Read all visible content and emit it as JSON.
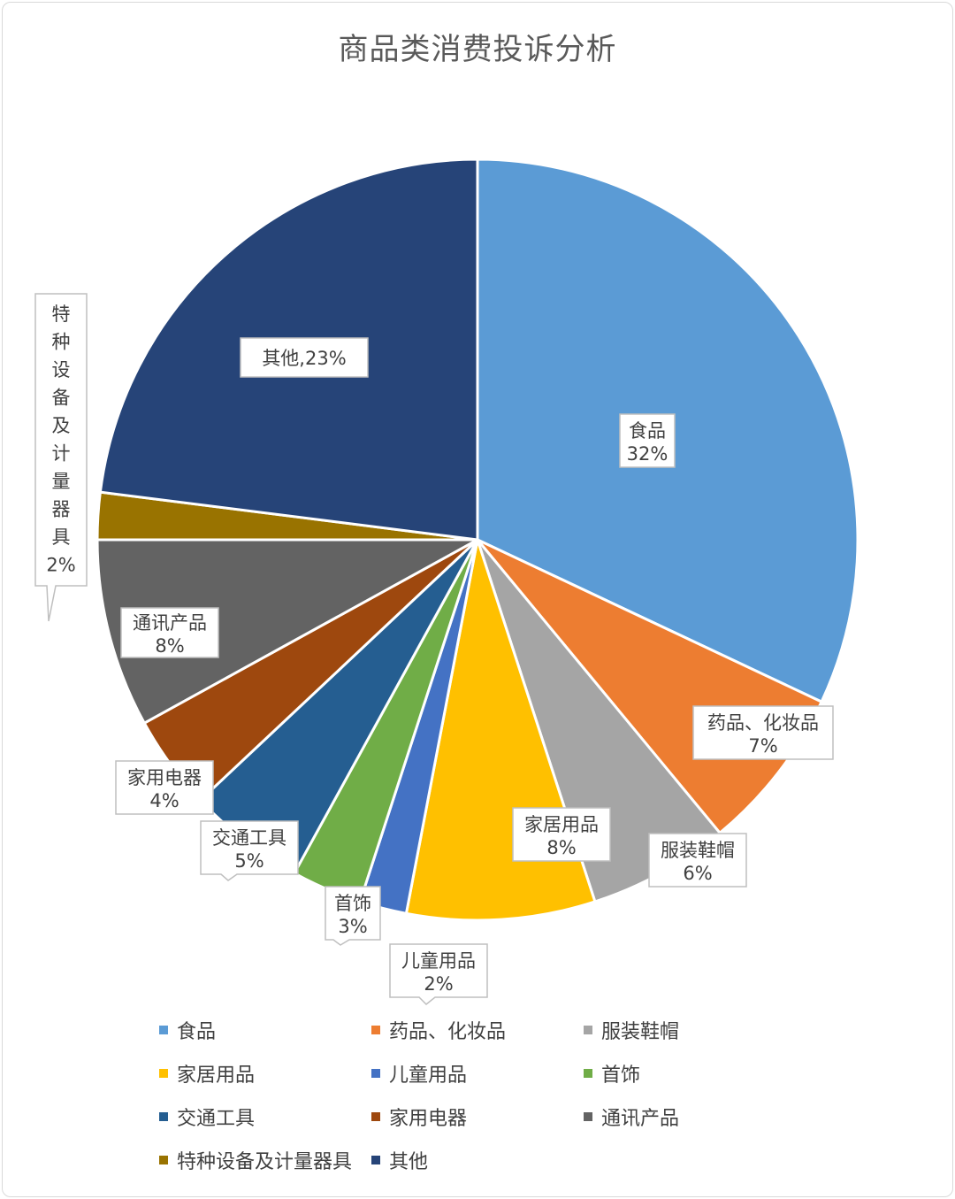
{
  "chart_data": {
    "type": "pie",
    "title": "商品类消费投诉分析",
    "slices": [
      {
        "name": "食品",
        "value": 32,
        "label": "32%",
        "color": "#5b9bd5"
      },
      {
        "name": "药品、化妆品",
        "value": 7,
        "label": "7%",
        "color": "#ed7d31"
      },
      {
        "name": "服装鞋帽",
        "value": 6,
        "label": "6%",
        "color": "#a5a5a5"
      },
      {
        "name": "家居用品",
        "value": 8,
        "label": "8%",
        "color": "#ffc000"
      },
      {
        "name": "儿童用品",
        "value": 2,
        "label": "2%",
        "color": "#4472c4"
      },
      {
        "name": "首饰",
        "value": 3,
        "label": "3%",
        "color": "#70ad47"
      },
      {
        "name": "交通工具",
        "value": 5,
        "label": "5%",
        "color": "#255e91"
      },
      {
        "name": "家用电器",
        "value": 4,
        "label": "4%",
        "color": "#9e480e"
      },
      {
        "name": "通讯产品",
        "value": 8,
        "label": "8%",
        "color": "#636363"
      },
      {
        "name": "特种设备及计量器具",
        "value": 2,
        "label": "2%",
        "color": "#997300"
      },
      {
        "name": "其他",
        "value": 23,
        "label": "其他,23%",
        "color": "#264478"
      }
    ],
    "legend_position": "bottom"
  }
}
